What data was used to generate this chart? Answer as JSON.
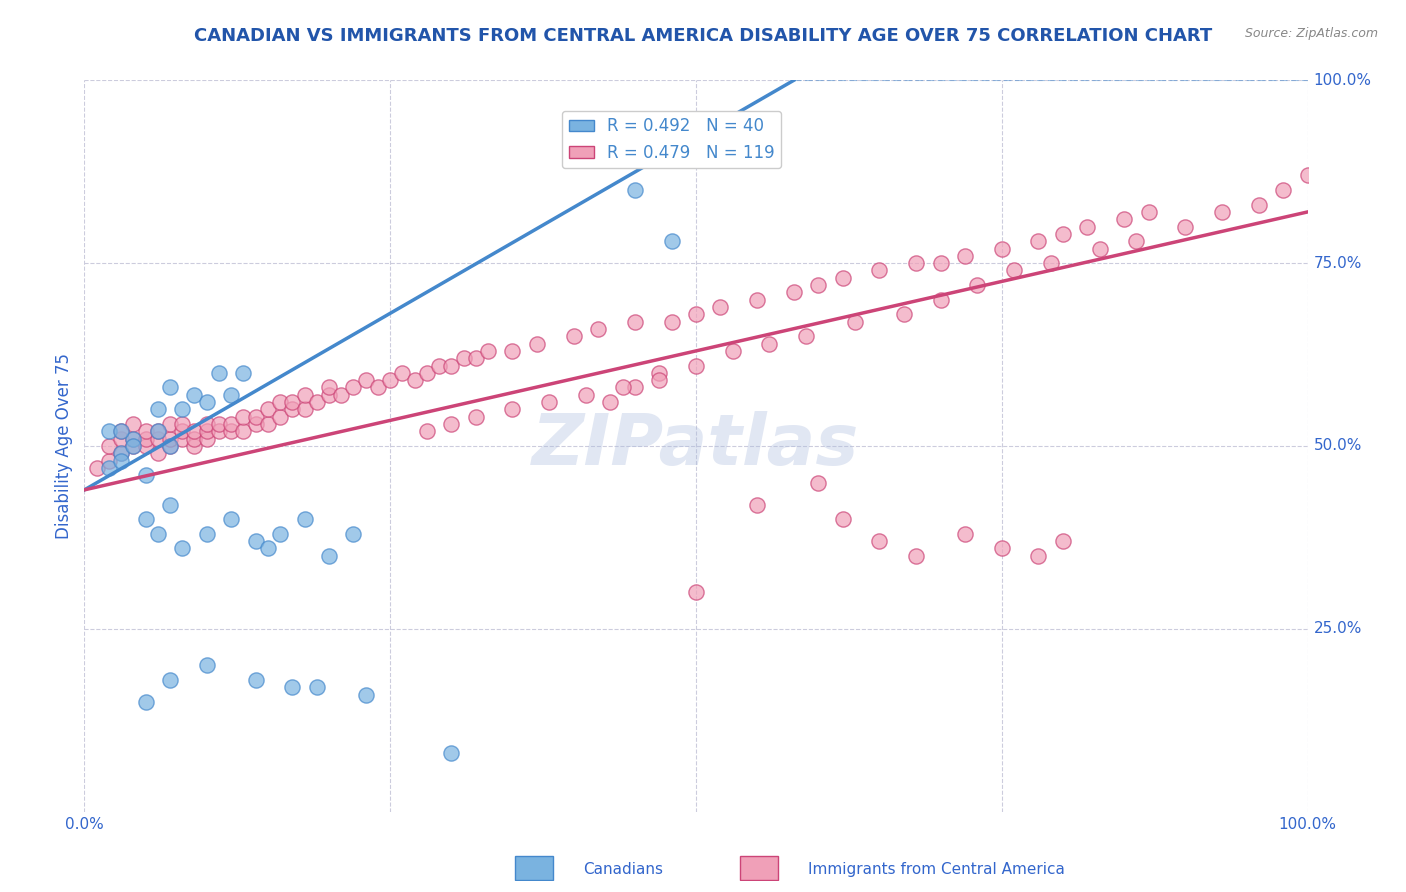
{
  "title": "CANADIAN VS IMMIGRANTS FROM CENTRAL AMERICA DISABILITY AGE OVER 75 CORRELATION CHART",
  "source": "Source: ZipAtlas.com",
  "ylabel": "Disability Age Over 75",
  "xlim": [
    0,
    1.0
  ],
  "ylim": [
    0,
    1.0
  ],
  "title_color": "#2255aa",
  "axis_label_color": "#3366cc",
  "grid_color": "#ccccdd",
  "background_color": "#ffffff",
  "watermark_text": "ZIPatlas",
  "watermark_color": "#aabbdd",
  "legend_label1": "R = 0.492   N = 40",
  "legend_label2": "R = 0.479   N = 119",
  "legend_color1": "#7ab3e0",
  "legend_color2": "#f0a0b8",
  "scatter_color1": "#7ab3e0",
  "scatter_color2": "#f0a0b8",
  "line_color1": "#4488cc",
  "line_color2": "#cc4477",
  "canadians_x": [
    0.02,
    0.03,
    0.04,
    0.02,
    0.03,
    0.05,
    0.03,
    0.04,
    0.06,
    0.07,
    0.06,
    0.07,
    0.08,
    0.09,
    0.1,
    0.11,
    0.12,
    0.13,
    0.05,
    0.06,
    0.07,
    0.08,
    0.1,
    0.12,
    0.14,
    0.15,
    0.16,
    0.18,
    0.2,
    0.22,
    0.05,
    0.07,
    0.1,
    0.14,
    0.17,
    0.19,
    0.23,
    0.3,
    0.45,
    0.48
  ],
  "canadians_y": [
    0.47,
    0.49,
    0.51,
    0.52,
    0.48,
    0.46,
    0.52,
    0.5,
    0.52,
    0.5,
    0.55,
    0.58,
    0.55,
    0.57,
    0.56,
    0.6,
    0.57,
    0.6,
    0.4,
    0.38,
    0.42,
    0.36,
    0.38,
    0.4,
    0.37,
    0.36,
    0.38,
    0.4,
    0.35,
    0.38,
    0.15,
    0.18,
    0.2,
    0.18,
    0.17,
    0.17,
    0.16,
    0.08,
    0.85,
    0.78
  ],
  "immigrants_x": [
    0.01,
    0.02,
    0.02,
    0.03,
    0.03,
    0.03,
    0.04,
    0.04,
    0.04,
    0.05,
    0.05,
    0.05,
    0.06,
    0.06,
    0.06,
    0.07,
    0.07,
    0.07,
    0.08,
    0.08,
    0.08,
    0.09,
    0.09,
    0.09,
    0.1,
    0.1,
    0.1,
    0.11,
    0.11,
    0.12,
    0.12,
    0.13,
    0.13,
    0.14,
    0.14,
    0.15,
    0.15,
    0.16,
    0.16,
    0.17,
    0.17,
    0.18,
    0.18,
    0.19,
    0.2,
    0.2,
    0.21,
    0.22,
    0.23,
    0.24,
    0.25,
    0.26,
    0.27,
    0.28,
    0.29,
    0.3,
    0.31,
    0.32,
    0.33,
    0.35,
    0.37,
    0.4,
    0.42,
    0.45,
    0.48,
    0.5,
    0.52,
    0.55,
    0.58,
    0.6,
    0.62,
    0.65,
    0.68,
    0.7,
    0.72,
    0.75,
    0.78,
    0.8,
    0.82,
    0.85,
    0.87,
    0.55,
    0.6,
    0.62,
    0.65,
    0.68,
    0.72,
    0.75,
    0.78,
    0.8,
    0.43,
    0.45,
    0.47,
    0.5,
    0.53,
    0.56,
    0.59,
    0.63,
    0.67,
    0.7,
    0.73,
    0.76,
    0.79,
    0.83,
    0.86,
    0.9,
    0.93,
    0.96,
    0.98,
    1.0,
    0.28,
    0.3,
    0.32,
    0.35,
    0.38,
    0.41,
    0.44,
    0.47,
    0.5
  ],
  "immigrants_y": [
    0.47,
    0.48,
    0.5,
    0.49,
    0.51,
    0.52,
    0.5,
    0.51,
    0.53,
    0.5,
    0.51,
    0.52,
    0.49,
    0.51,
    0.52,
    0.5,
    0.51,
    0.53,
    0.51,
    0.52,
    0.53,
    0.5,
    0.51,
    0.52,
    0.51,
    0.52,
    0.53,
    0.52,
    0.53,
    0.52,
    0.53,
    0.52,
    0.54,
    0.53,
    0.54,
    0.53,
    0.55,
    0.54,
    0.56,
    0.55,
    0.56,
    0.55,
    0.57,
    0.56,
    0.57,
    0.58,
    0.57,
    0.58,
    0.59,
    0.58,
    0.59,
    0.6,
    0.59,
    0.6,
    0.61,
    0.61,
    0.62,
    0.62,
    0.63,
    0.63,
    0.64,
    0.65,
    0.66,
    0.67,
    0.67,
    0.68,
    0.69,
    0.7,
    0.71,
    0.72,
    0.73,
    0.74,
    0.75,
    0.75,
    0.76,
    0.77,
    0.78,
    0.79,
    0.8,
    0.81,
    0.82,
    0.42,
    0.45,
    0.4,
    0.37,
    0.35,
    0.38,
    0.36,
    0.35,
    0.37,
    0.56,
    0.58,
    0.6,
    0.61,
    0.63,
    0.64,
    0.65,
    0.67,
    0.68,
    0.7,
    0.72,
    0.74,
    0.75,
    0.77,
    0.78,
    0.8,
    0.82,
    0.83,
    0.85,
    0.87,
    0.52,
    0.53,
    0.54,
    0.55,
    0.56,
    0.57,
    0.58,
    0.59,
    0.3
  ],
  "line1_x": [
    0.0,
    0.58
  ],
  "line1_y": [
    0.44,
    1.0
  ],
  "line2_x": [
    0.0,
    1.0
  ],
  "line2_y": [
    0.44,
    0.82
  ],
  "dashed_line_x": [
    0.58,
    1.0
  ],
  "dashed_line_y": [
    1.0,
    1.0
  ],
  "legend_bottom_labels": [
    "Canadians",
    "Immigrants from Central America"
  ],
  "ytick_positions": [
    0.25,
    0.5,
    0.75,
    1.0
  ],
  "ytick_labels": [
    "25.0%",
    "50.0%",
    "75.0%",
    "100.0%"
  ]
}
